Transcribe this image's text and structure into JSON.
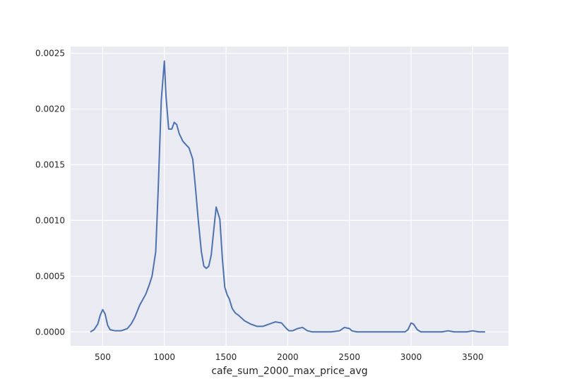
{
  "chart_data": {
    "type": "line",
    "title": "",
    "xlabel": "cafe_sum_2000_max_price_avg",
    "ylabel": "",
    "xlim": [
      240,
      3790
    ],
    "ylim": [
      -0.000125,
      0.00256
    ],
    "x_ticks": [
      500,
      1000,
      1500,
      2000,
      2500,
      3000,
      3500
    ],
    "x_tick_labels": [
      "500",
      "1000",
      "1500",
      "2000",
      "2500",
      "3000",
      "3500"
    ],
    "y_ticks": [
      0,
      0.0005,
      0.001,
      0.0015,
      0.002,
      0.0025
    ],
    "y_tick_labels": [
      "0.0000",
      "0.0005",
      "0.0010",
      "0.0015",
      "0.0020",
      "0.0025"
    ],
    "grid": true,
    "background": "#eaeaf2",
    "grid_color": "#ffffff",
    "series": [
      {
        "color": "#4c72b0",
        "x": [
          400,
          430,
          460,
          480,
          500,
          520,
          540,
          560,
          600,
          650,
          700,
          730,
          760,
          800,
          850,
          880,
          900,
          930,
          950,
          975,
          1000,
          1013,
          1035,
          1060,
          1080,
          1100,
          1120,
          1150,
          1175,
          1200,
          1230,
          1250,
          1275,
          1300,
          1320,
          1340,
          1360,
          1380,
          1400,
          1420,
          1450,
          1470,
          1490,
          1510,
          1525,
          1550,
          1575,
          1600,
          1650,
          1700,
          1750,
          1800,
          1850,
          1900,
          1950,
          1990,
          2010,
          2040,
          2080,
          2120,
          2160,
          2200,
          2240,
          2280,
          2350,
          2420,
          2460,
          2500,
          2520,
          2560,
          2600,
          2700,
          2800,
          2900,
          2950,
          2975,
          3000,
          3020,
          3050,
          3080,
          3150,
          3200,
          3250,
          3300,
          3350,
          3400,
          3450,
          3500,
          3550,
          3600
        ],
        "y": [
          0.0,
          2e-05,
          7e-05,
          0.00015,
          0.0002,
          0.00016,
          6e-05,
          2e-05,
          1e-05,
          1e-05,
          3e-05,
          7e-05,
          0.00013,
          0.00024,
          0.00034,
          0.00043,
          0.0005,
          0.00072,
          0.00128,
          0.00208,
          0.00243,
          0.00212,
          0.00182,
          0.00182,
          0.00188,
          0.00186,
          0.00178,
          0.00171,
          0.00168,
          0.00165,
          0.00155,
          0.00132,
          0.001,
          0.00072,
          0.00059,
          0.00057,
          0.00059,
          0.00069,
          0.00091,
          0.00112,
          0.00101,
          0.00066,
          0.0004,
          0.00033,
          0.0003,
          0.00021,
          0.00017,
          0.00015,
          0.0001,
          7e-05,
          5e-05,
          5e-05,
          7e-05,
          9e-05,
          8e-05,
          3e-05,
          1e-05,
          1e-05,
          3e-05,
          4e-05,
          1e-05,
          0.0,
          0.0,
          0.0,
          0.0,
          1e-05,
          4e-05,
          3e-05,
          1e-05,
          0.0,
          0.0,
          0.0,
          0.0,
          0.0,
          0.0,
          2e-05,
          8e-05,
          7e-05,
          2e-05,
          0.0,
          0.0,
          0.0,
          0.0,
          1e-05,
          0.0,
          0.0,
          0.0,
          1e-05,
          0.0,
          0.0
        ]
      }
    ]
  }
}
